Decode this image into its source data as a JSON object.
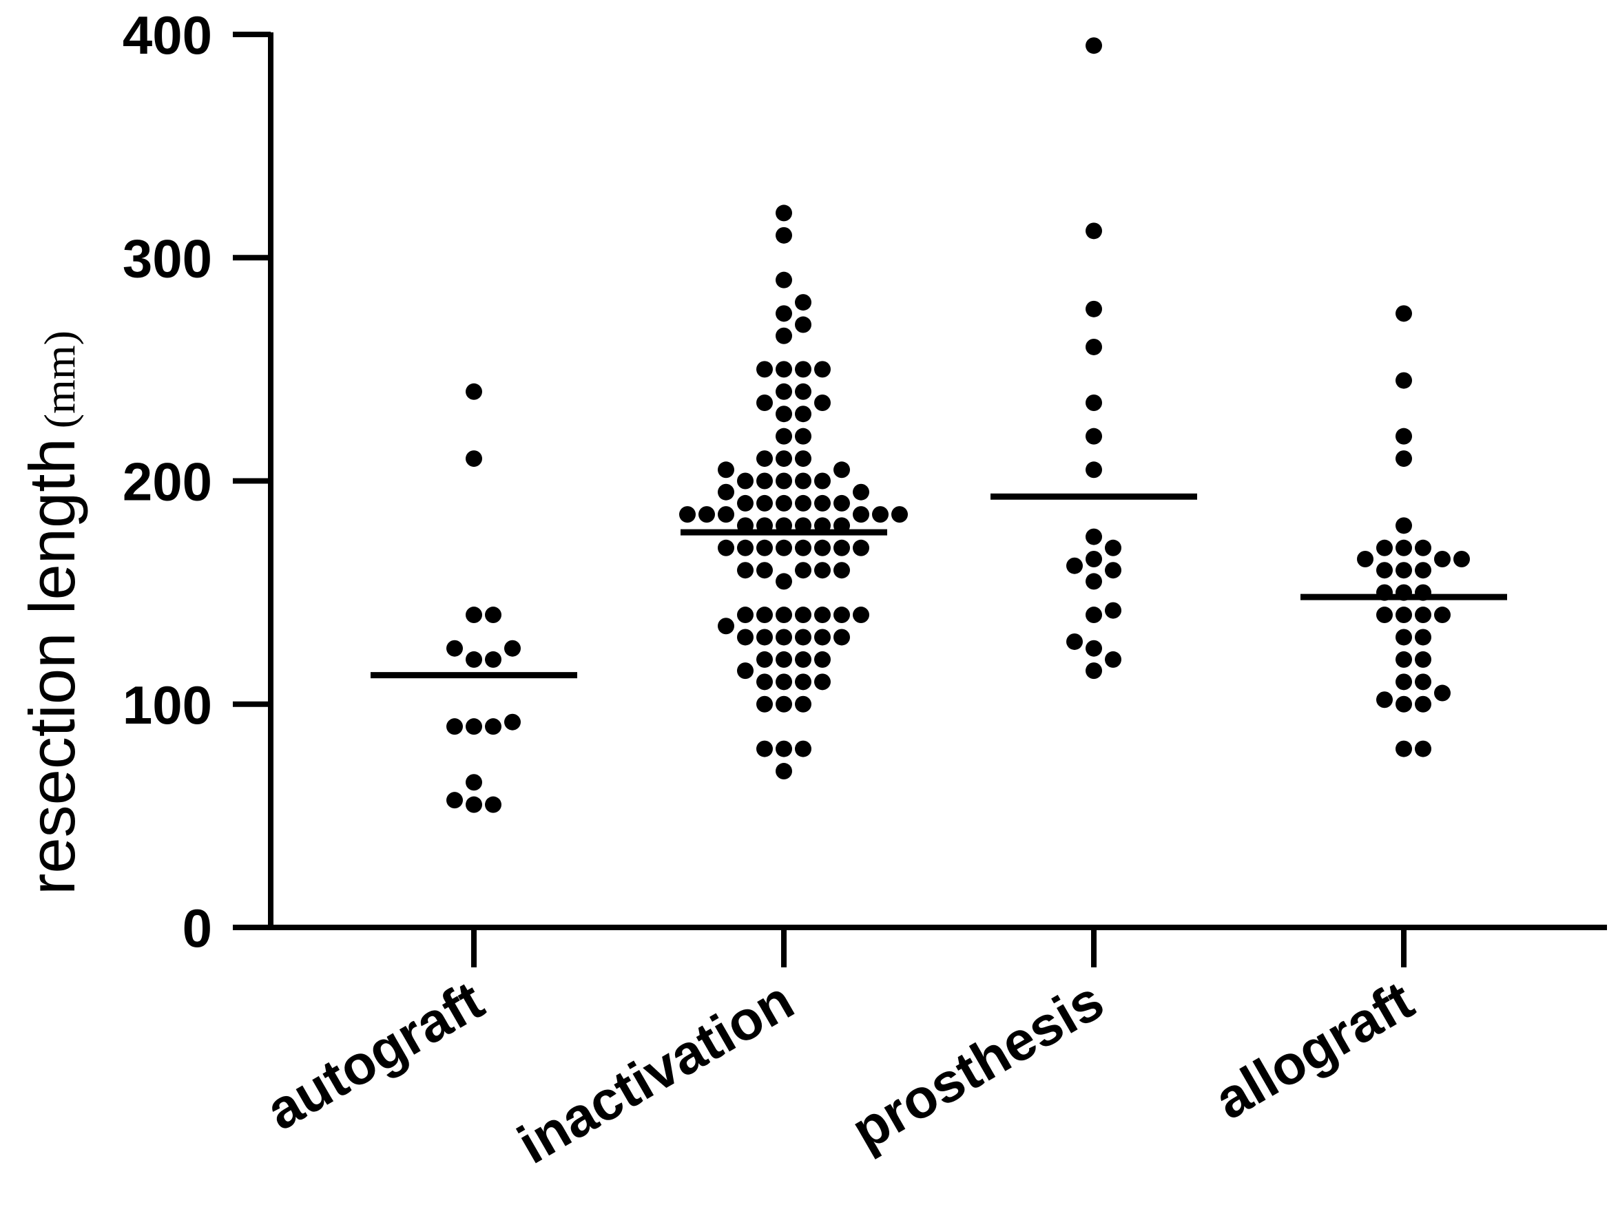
{
  "chart_data": {
    "type": "scatter",
    "title": "",
    "ylabel": "resection length",
    "ylabel_unit": "(mm)",
    "xlabel": "",
    "ylim": [
      0,
      400
    ],
    "yticks": [
      "0",
      "100",
      "200",
      "300",
      "400"
    ],
    "yticks_values": [
      0,
      100,
      200,
      300,
      400
    ],
    "categories": [
      "autograft",
      "inactivation",
      "prosthesis",
      "allograft"
    ],
    "grid": false,
    "legend": "none",
    "series": [
      {
        "category": "autograft",
        "mean": 113,
        "values": [
          240,
          210,
          140,
          140,
          125,
          125,
          120,
          120,
          92,
          90,
          90,
          90,
          65,
          57,
          55,
          55
        ]
      },
      {
        "category": "inactivation",
        "mean": 177,
        "values": [
          320,
          310,
          290,
          280,
          275,
          270,
          265,
          250,
          250,
          250,
          250,
          240,
          240,
          235,
          235,
          230,
          230,
          220,
          220,
          210,
          210,
          210,
          205,
          205,
          200,
          200,
          200,
          200,
          200,
          195,
          195,
          190,
          190,
          190,
          190,
          190,
          190,
          185,
          185,
          185,
          185,
          185,
          185,
          180,
          180,
          180,
          180,
          180,
          180,
          170,
          170,
          170,
          170,
          170,
          170,
          170,
          170,
          160,
          160,
          160,
          160,
          160,
          155,
          140,
          140,
          140,
          140,
          140,
          140,
          140,
          135,
          130,
          130,
          130,
          130,
          130,
          130,
          120,
          120,
          120,
          120,
          115,
          110,
          110,
          110,
          110,
          100,
          100,
          100,
          80,
          80,
          80,
          70
        ]
      },
      {
        "category": "prosthesis",
        "mean": 193,
        "values": [
          395,
          312,
          277,
          260,
          235,
          220,
          205,
          175,
          170,
          165,
          162,
          160,
          155,
          142,
          140,
          128,
          125,
          120,
          115
        ]
      },
      {
        "category": "allograft",
        "mean": 148,
        "values": [
          275,
          245,
          220,
          210,
          180,
          170,
          170,
          170,
          165,
          165,
          165,
          160,
          160,
          160,
          150,
          150,
          150,
          140,
          140,
          140,
          140,
          130,
          130,
          120,
          120,
          110,
          110,
          105,
          102,
          100,
          100,
          80,
          80
        ]
      }
    ]
  },
  "colors": {
    "points": "#000000",
    "axes": "#000000",
    "mean_line": "#000000",
    "background": "#ffffff"
  }
}
